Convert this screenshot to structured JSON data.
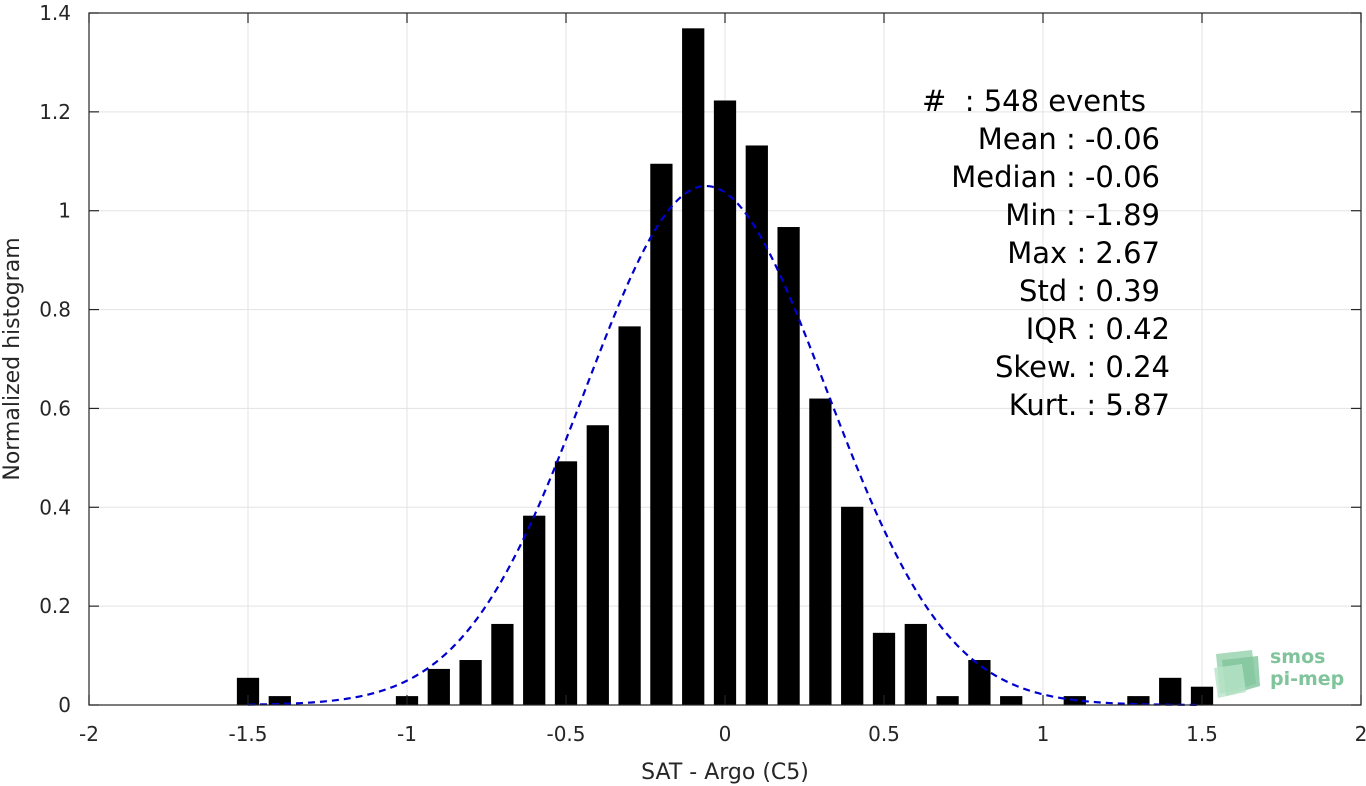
{
  "chart_data": {
    "type": "bar",
    "xlabel": "SAT - Argo (C5)",
    "ylabel": "Normalized histogram",
    "xlim": [
      -2,
      2
    ],
    "ylim": [
      0,
      1.4
    ],
    "xticks": [
      -2,
      -1.5,
      -1,
      -0.5,
      0,
      0.5,
      1,
      1.5,
      2
    ],
    "xtick_labels": [
      "-2",
      "-1.5",
      "-1",
      "-0.5",
      "0",
      "0.5",
      "1",
      "1.5",
      "2"
    ],
    "yticks": [
      0,
      0.2,
      0.4,
      0.6,
      0.8,
      1,
      1.2,
      1.4
    ],
    "ytick_labels": [
      "0",
      "0.2",
      "0.4",
      "0.6",
      "0.8",
      "1",
      "1.2",
      "1.4"
    ],
    "grid": true,
    "bar_width": 0.07,
    "bar_color": "#000000",
    "bars": [
      {
        "x": -1.5,
        "y": 0.055
      },
      {
        "x": -1.4,
        "y": 0.018
      },
      {
        "x": -1.0,
        "y": 0.018
      },
      {
        "x": -0.9,
        "y": 0.073
      },
      {
        "x": -0.8,
        "y": 0.091
      },
      {
        "x": -0.7,
        "y": 0.164
      },
      {
        "x": -0.6,
        "y": 0.383
      },
      {
        "x": -0.5,
        "y": 0.493
      },
      {
        "x": -0.4,
        "y": 0.566
      },
      {
        "x": -0.3,
        "y": 0.766
      },
      {
        "x": -0.2,
        "y": 1.095
      },
      {
        "x": -0.1,
        "y": 1.369
      },
      {
        "x": 0.0,
        "y": 1.223
      },
      {
        "x": 0.1,
        "y": 1.132
      },
      {
        "x": 0.2,
        "y": 0.967
      },
      {
        "x": 0.3,
        "y": 0.62
      },
      {
        "x": 0.4,
        "y": 0.401
      },
      {
        "x": 0.5,
        "y": 0.146
      },
      {
        "x": 0.6,
        "y": 0.164
      },
      {
        "x": 0.7,
        "y": 0.018
      },
      {
        "x": 0.8,
        "y": 0.091
      },
      {
        "x": 0.9,
        "y": 0.018
      },
      {
        "x": 1.1,
        "y": 0.018
      },
      {
        "x": 1.3,
        "y": 0.018
      },
      {
        "x": 1.4,
        "y": 0.055
      },
      {
        "x": 1.5,
        "y": 0.037
      }
    ],
    "fit_curve": {
      "type": "gaussian",
      "mean": -0.06,
      "std": 0.38,
      "peak": 1.05,
      "x_range": [
        -1.5,
        1.5
      ],
      "color": "#0000cc",
      "style": "dashed"
    }
  },
  "stats": {
    "line1": "#  : 548 events",
    "line2": "Mean : -0.06",
    "line3": "Median : -0.06",
    "line4": "Min : -1.89",
    "line5": "Max : 2.67",
    "line6": "Std : 0.39",
    "line7": "IQR : 0.42",
    "line8": "Skew. : 0.24",
    "line9": "Kurt. : 5.87"
  },
  "logo": {
    "line1": "smos",
    "line2": "pi-mep"
  }
}
